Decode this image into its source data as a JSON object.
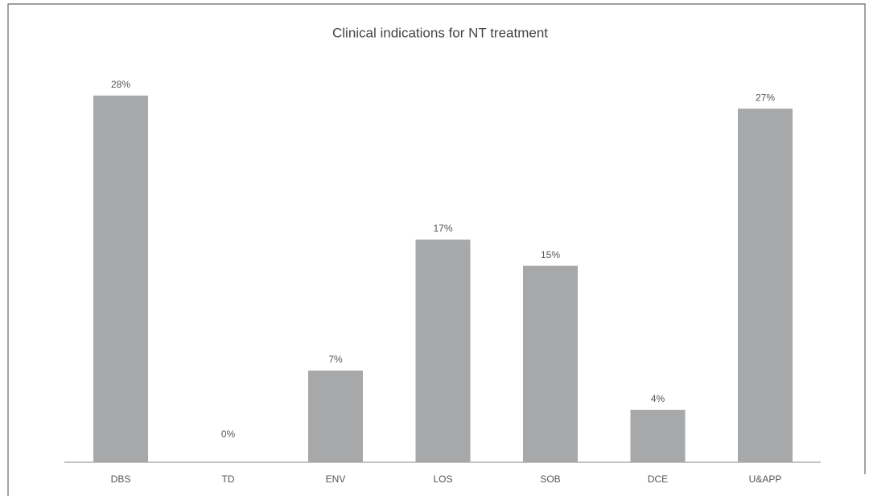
{
  "chart_data": {
    "type": "bar",
    "title": "Clinical indications for NT treatment",
    "categories": [
      "DBS",
      "TD",
      "ENV",
      "LOS",
      "SOB",
      "DCE",
      "U&APP"
    ],
    "values": [
      28,
      0,
      7,
      17,
      15,
      4,
      27
    ],
    "value_labels": [
      "28%",
      "0%",
      "7%",
      "17%",
      "15%",
      "4%",
      "27%"
    ],
    "color": "#a7a8aa"
  }
}
